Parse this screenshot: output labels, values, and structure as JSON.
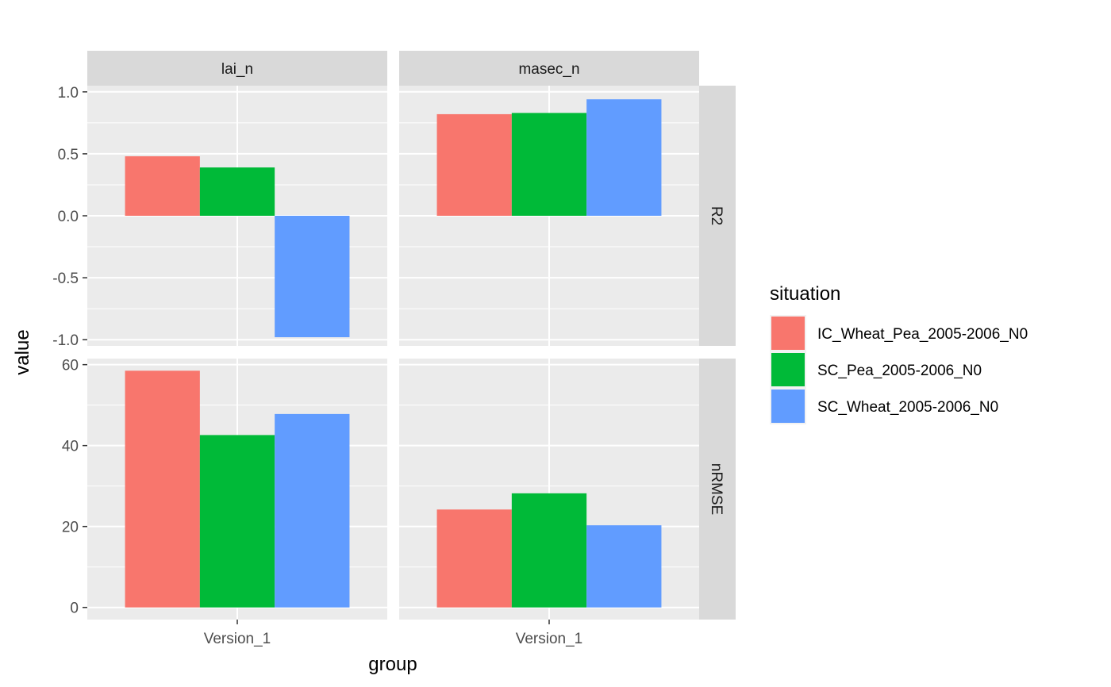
{
  "chart_data": {
    "type": "bar",
    "xlabel": "group",
    "ylabel": "value",
    "categories": [
      "Version_1"
    ],
    "facet_columns": [
      "lai_n",
      "masec_n"
    ],
    "facet_rows": [
      "R2",
      "nRMSE"
    ],
    "row_scales": {
      "R2": {
        "ylim": [
          -1.05,
          1.05
        ],
        "ticks": [
          -1.0,
          -0.5,
          0.0,
          0.5,
          1.0
        ],
        "tick_labels": [
          "-1.0",
          "-0.5",
          "0.0",
          "0.5",
          "1.0"
        ]
      },
      "nRMSE": {
        "ylim": [
          -3,
          61.5
        ],
        "ticks": [
          0,
          20,
          40,
          60
        ],
        "tick_labels": [
          "0",
          "20",
          "40",
          "60"
        ]
      }
    },
    "series": [
      {
        "name": "IC_Wheat_Pea_2005-2006_N0",
        "color": "#F8766D",
        "values": {
          "lai_n|R2": 0.48,
          "masec_n|R2": 0.82,
          "lai_n|nRMSE": 58.5,
          "masec_n|nRMSE": 24.2
        }
      },
      {
        "name": "SC_Pea_2005-2006_N0",
        "color": "#00BA38",
        "values": {
          "lai_n|R2": 0.39,
          "masec_n|R2": 0.83,
          "lai_n|nRMSE": 42.6,
          "masec_n|nRMSE": 28.2
        }
      },
      {
        "name": "SC_Wheat_2005-2006_N0",
        "color": "#619CFF",
        "values": {
          "lai_n|R2": -0.98,
          "masec_n|R2": 0.94,
          "lai_n|nRMSE": 47.8,
          "masec_n|nRMSE": 20.3
        }
      }
    ],
    "legend": {
      "title": "situation",
      "position": "right"
    },
    "grid": true,
    "panel_background": "#EBEBEB",
    "strip_background": "#D9D9D9"
  }
}
